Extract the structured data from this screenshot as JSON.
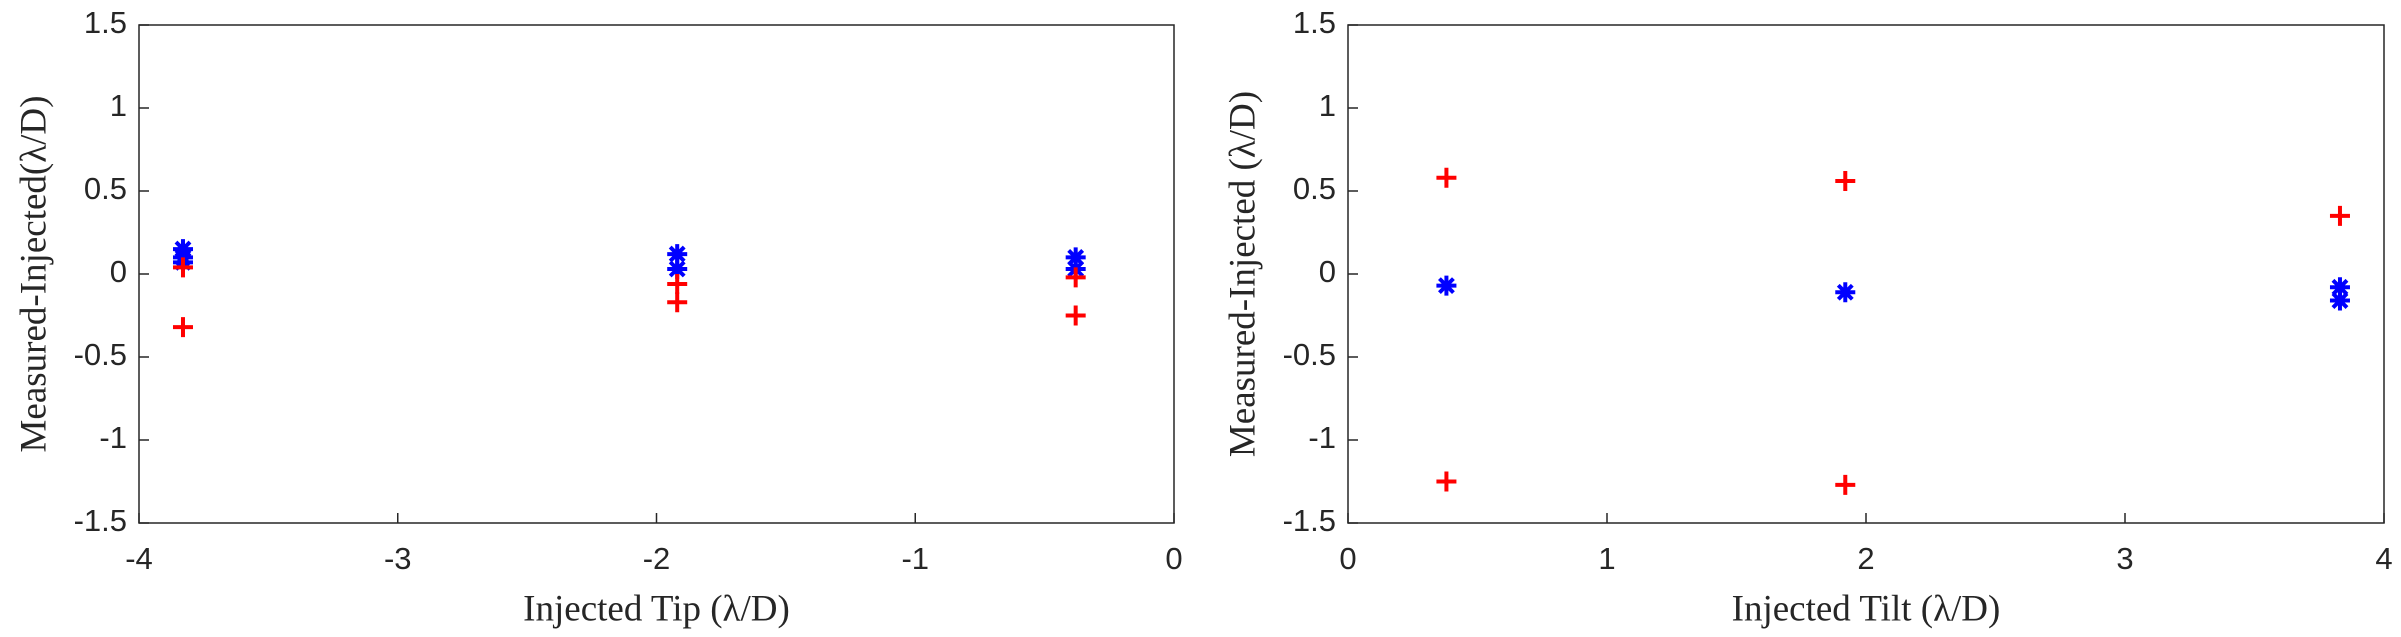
{
  "chart_data": [
    {
      "type": "scatter",
      "xlabel": "Injected Tip (λ/D)",
      "ylabel": "Measured-Injected(λ/D)",
      "xlim": [
        -4,
        0
      ],
      "xticks": [
        -4,
        -3,
        -2,
        -1,
        0
      ],
      "ylim": [
        -1.5,
        1.5
      ],
      "yticks": [
        -1.5,
        -1,
        -0.5,
        0,
        0.5,
        1,
        1.5
      ],
      "series": [
        {
          "color": "#0000ff",
          "marker": "asterisk",
          "x": [
            -3.83,
            -3.83,
            -3.83,
            -1.92,
            -1.92,
            -0.38,
            -0.38
          ],
          "values": [
            0.15,
            0.1,
            0.07,
            0.12,
            0.03,
            0.1,
            0.03
          ]
        },
        {
          "color": "#ff0000",
          "marker": "plus",
          "x": [
            -3.83,
            -3.83,
            -1.92,
            -1.92,
            -0.38,
            -0.38
          ],
          "values": [
            0.04,
            -0.32,
            -0.06,
            -0.17,
            -0.02,
            -0.25
          ]
        }
      ]
    },
    {
      "type": "scatter",
      "xlabel": "Injected Tilt (λ/D)",
      "ylabel": "Measured-Injected (λ/D)",
      "xlim": [
        0,
        4
      ],
      "xticks": [
        0,
        1,
        2,
        3,
        4
      ],
      "ylim": [
        -1.5,
        1.5
      ],
      "yticks": [
        -1.5,
        -1,
        -0.5,
        0,
        0.5,
        1,
        1.5
      ],
      "series": [
        {
          "color": "#0000ff",
          "marker": "asterisk",
          "x": [
            0.38,
            1.92,
            3.83,
            3.83
          ],
          "values": [
            -0.07,
            -0.11,
            -0.08,
            -0.16
          ]
        },
        {
          "color": "#ff0000",
          "marker": "plus",
          "x": [
            0.38,
            0.38,
            1.92,
            1.92,
            3.83
          ],
          "values": [
            0.58,
            -1.25,
            0.56,
            -1.27,
            0.35
          ]
        }
      ]
    }
  ]
}
